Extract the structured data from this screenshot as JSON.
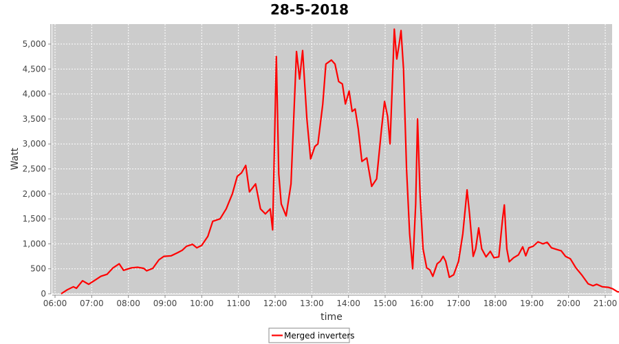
{
  "chart_data": {
    "type": "line",
    "title": "28-5-2018",
    "xlabel": "time",
    "ylabel": "Watt",
    "xlim": [
      "06:00",
      "21:00"
    ],
    "ylim": [
      0,
      5400
    ],
    "x_ticks": [
      "06:00",
      "07:00",
      "08:00",
      "09:00",
      "10:00",
      "11:00",
      "12:00",
      "13:00",
      "14:00",
      "15:00",
      "16:00",
      "17:00",
      "18:00",
      "19:00",
      "20:00",
      "21:00"
    ],
    "y_ticks": [
      0,
      500,
      1000,
      1500,
      2000,
      2500,
      3000,
      3500,
      4000,
      4500,
      5000
    ],
    "y_tick_labels": [
      "0",
      "500",
      "1,000",
      "1,500",
      "2,000",
      "2,500",
      "3,000",
      "3,500",
      "4,000",
      "4,500",
      "5,000"
    ],
    "grid": true,
    "legend_position": "bottom-center",
    "series": [
      {
        "name": "Merged inverters",
        "color": "#ff0000",
        "points": [
          [
            "06:10",
            0
          ],
          [
            "06:20",
            80
          ],
          [
            "06:30",
            140
          ],
          [
            "06:35",
            110
          ],
          [
            "06:45",
            260
          ],
          [
            "06:55",
            190
          ],
          [
            "07:05",
            270
          ],
          [
            "07:15",
            350
          ],
          [
            "07:25",
            390
          ],
          [
            "07:35",
            520
          ],
          [
            "07:45",
            600
          ],
          [
            "07:52",
            470
          ],
          [
            "08:05",
            520
          ],
          [
            "08:15",
            530
          ],
          [
            "08:25",
            510
          ],
          [
            "08:30",
            460
          ],
          [
            "08:40",
            510
          ],
          [
            "08:50",
            680
          ],
          [
            "08:58",
            750
          ],
          [
            "09:10",
            760
          ],
          [
            "09:20",
            820
          ],
          [
            "09:28",
            870
          ],
          [
            "09:35",
            950
          ],
          [
            "09:45",
            990
          ],
          [
            "09:52",
            920
          ],
          [
            "10:00",
            970
          ],
          [
            "10:10",
            1150
          ],
          [
            "10:18",
            1450
          ],
          [
            "10:30",
            1500
          ],
          [
            "10:40",
            1700
          ],
          [
            "10:50",
            2000
          ],
          [
            "10:58",
            2350
          ],
          [
            "11:05",
            2420
          ],
          [
            "11:12",
            2570
          ],
          [
            "11:18",
            2040
          ],
          [
            "11:28",
            2200
          ],
          [
            "11:36",
            1700
          ],
          [
            "11:44",
            1600
          ],
          [
            "11:52",
            1700
          ],
          [
            "11:56",
            1280
          ],
          [
            "12:02",
            4750
          ],
          [
            "12:06",
            2400
          ],
          [
            "12:10",
            1800
          ],
          [
            "12:18",
            1560
          ],
          [
            "12:26",
            2200
          ],
          [
            "12:35",
            4850
          ],
          [
            "12:40",
            4300
          ],
          [
            "12:45",
            4870
          ],
          [
            "12:52",
            3500
          ],
          [
            "12:58",
            2700
          ],
          [
            "13:05",
            2950
          ],
          [
            "13:10",
            3000
          ],
          [
            "13:18",
            3800
          ],
          [
            "13:23",
            4600
          ],
          [
            "13:32",
            4680
          ],
          [
            "13:38",
            4600
          ],
          [
            "13:44",
            4250
          ],
          [
            "13:50",
            4200
          ],
          [
            "13:55",
            3800
          ],
          [
            "14:01",
            4060
          ],
          [
            "14:06",
            3650
          ],
          [
            "14:11",
            3700
          ],
          [
            "14:16",
            3300
          ],
          [
            "14:22",
            2650
          ],
          [
            "14:30",
            2720
          ],
          [
            "14:38",
            2150
          ],
          [
            "14:46",
            2300
          ],
          [
            "14:54",
            3300
          ],
          [
            "14:59",
            3850
          ],
          [
            "15:04",
            3550
          ],
          [
            "15:08",
            3000
          ],
          [
            "15:12",
            4300
          ],
          [
            "15:15",
            5300
          ],
          [
            "15:19",
            4700
          ],
          [
            "15:23",
            5000
          ],
          [
            "15:26",
            5270
          ],
          [
            "15:30",
            4500
          ],
          [
            "15:35",
            2500
          ],
          [
            "15:40",
            1200
          ],
          [
            "15:45",
            500
          ],
          [
            "15:50",
            1800
          ],
          [
            "15:53",
            3500
          ],
          [
            "15:57",
            2000
          ],
          [
            "16:02",
            900
          ],
          [
            "16:08",
            520
          ],
          [
            "16:13",
            480
          ],
          [
            "16:18",
            350
          ],
          [
            "16:25",
            600
          ],
          [
            "16:30",
            650
          ],
          [
            "16:35",
            750
          ],
          [
            "16:39",
            650
          ],
          [
            "16:45",
            330
          ],
          [
            "16:52",
            380
          ],
          [
            "17:00",
            650
          ],
          [
            "17:07",
            1200
          ],
          [
            "17:14",
            2080
          ],
          [
            "17:18",
            1600
          ],
          [
            "17:24",
            750
          ],
          [
            "17:28",
            900
          ],
          [
            "17:33",
            1320
          ],
          [
            "17:38",
            900
          ],
          [
            "17:45",
            740
          ],
          [
            "17:52",
            850
          ],
          [
            "17:58",
            720
          ],
          [
            "18:06",
            740
          ],
          [
            "18:12",
            1500
          ],
          [
            "18:15",
            1780
          ],
          [
            "18:19",
            900
          ],
          [
            "18:23",
            640
          ],
          [
            "18:30",
            720
          ],
          [
            "18:38",
            780
          ],
          [
            "18:45",
            940
          ],
          [
            "18:50",
            760
          ],
          [
            "18:55",
            920
          ],
          [
            "19:02",
            950
          ],
          [
            "19:10",
            1040
          ],
          [
            "19:18",
            1000
          ],
          [
            "19:25",
            1030
          ],
          [
            "19:32",
            920
          ],
          [
            "19:40",
            890
          ],
          [
            "19:48",
            860
          ],
          [
            "19:55",
            750
          ],
          [
            "20:03",
            700
          ],
          [
            "20:12",
            520
          ],
          [
            "20:22",
            370
          ],
          [
            "20:32",
            200
          ],
          [
            "20:40",
            160
          ],
          [
            "20:46",
            190
          ],
          [
            "20:55",
            140
          ],
          [
            "21:05",
            130
          ],
          [
            "21:12",
            100
          ],
          [
            "21:20",
            40
          ],
          [
            "21:30",
            30
          ],
          [
            "21:38",
            0
          ]
        ]
      }
    ]
  }
}
